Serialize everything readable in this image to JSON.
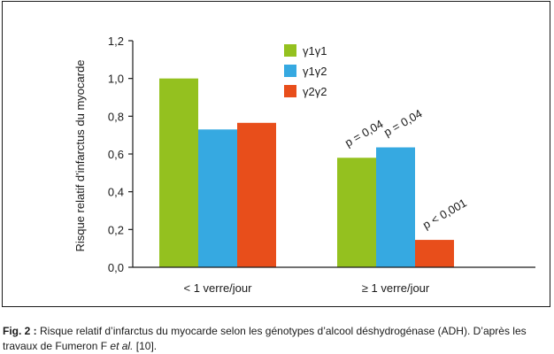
{
  "chart_data": {
    "type": "bar",
    "ylabel": "Risque relatif d'infarctus du myocarde",
    "xlabel": "",
    "ylim": [
      0,
      1.2
    ],
    "yticks": [
      "0,0",
      "0,2",
      "0,4",
      "0,6",
      "0,8",
      "1,0",
      "1,2"
    ],
    "ytick_values": [
      0,
      0.2,
      0.4,
      0.6,
      0.8,
      1.0,
      1.2
    ],
    "categories": [
      "< 1 verre/jour",
      "≥ 1 verre/jour"
    ],
    "series": [
      {
        "name": "γ1γ1",
        "color": "#94c11f",
        "values": [
          1.0,
          0.58
        ]
      },
      {
        "name": "γ1γ2",
        "color": "#36a9e1",
        "values": [
          0.73,
          0.635
        ]
      },
      {
        "name": "γ2γ2",
        "color": "#e84e1b",
        "values": [
          0.765,
          0.145
        ]
      }
    ],
    "annotations": [
      {
        "category": 1,
        "series": 0,
        "text": "p = 0,04"
      },
      {
        "category": 1,
        "series": 1,
        "text": "p = 0,04"
      },
      {
        "category": 1,
        "series": 2,
        "text": "p < 0,001"
      }
    ],
    "legend_position": "top-center",
    "grid": false
  },
  "caption": {
    "label": "Fig. 2 :",
    "text": "Risque relatif d’infarctus du myocarde selon les génotypes d’alcool déshydrogénase (ADH). D’après les travaux de Fumeron F",
    "etal": "et al.",
    "ref": "[10]."
  }
}
